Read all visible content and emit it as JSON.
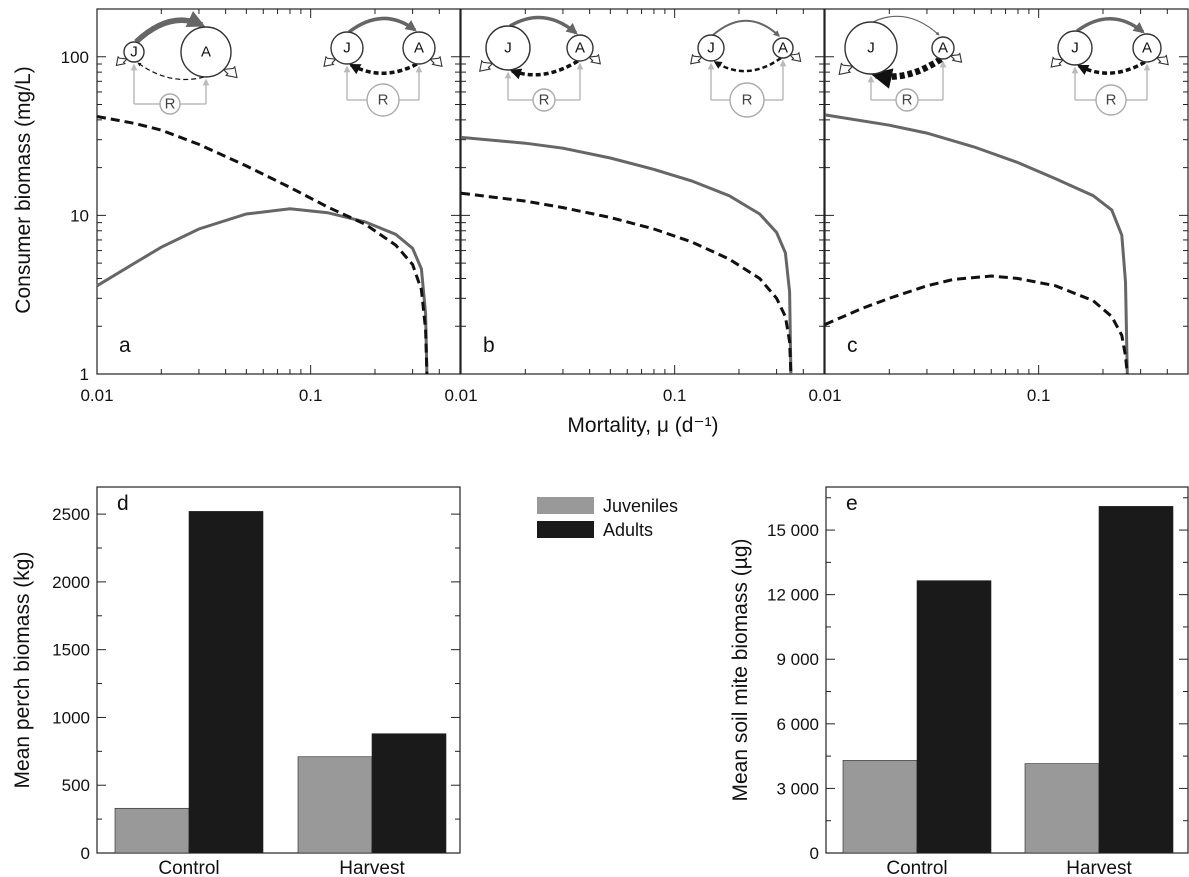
{
  "chart_data": [
    {
      "panel": "a",
      "type": "line",
      "xscale": "log",
      "yscale": "log",
      "xlim": [
        0.01,
        0.5
      ],
      "ylim": [
        1,
        200
      ],
      "xticks": [
        "0.01",
        "0.1"
      ],
      "yticks": [
        "1",
        "10",
        "100"
      ],
      "series": [
        {
          "style": "solid",
          "color": "#666666",
          "x": [
            0.01,
            0.015,
            0.02,
            0.03,
            0.05,
            0.08,
            0.12,
            0.18,
            0.25,
            0.3,
            0.33,
            0.345,
            0.35
          ],
          "y": [
            3.6,
            5.0,
            6.3,
            8.2,
            10.2,
            11.0,
            10.4,
            9.1,
            7.6,
            6.2,
            4.6,
            2.4,
            1.0
          ]
        },
        {
          "style": "dashed",
          "color": "#111111",
          "x": [
            0.01,
            0.015,
            0.02,
            0.03,
            0.05,
            0.08,
            0.12,
            0.18,
            0.25,
            0.3,
            0.33,
            0.345,
            0.35
          ],
          "y": [
            42,
            38,
            34.5,
            28,
            20.5,
            15,
            11.3,
            8.8,
            6.5,
            4.9,
            3.4,
            1.9,
            1.0
          ]
        }
      ]
    },
    {
      "panel": "b",
      "type": "line",
      "xscale": "log",
      "yscale": "log",
      "xlim": [
        0.01,
        0.5
      ],
      "ylim": [
        1,
        200
      ],
      "xticks": [
        "0.01",
        "0.1"
      ],
      "yticks": [],
      "series": [
        {
          "style": "solid",
          "color": "#666666",
          "x": [
            0.01,
            0.02,
            0.03,
            0.05,
            0.08,
            0.12,
            0.18,
            0.25,
            0.3,
            0.33,
            0.345,
            0.35
          ],
          "y": [
            31,
            28.5,
            26.5,
            23,
            19.5,
            16.5,
            13.3,
            10.2,
            7.8,
            5.8,
            3.3,
            1.0
          ]
        },
        {
          "style": "dashed",
          "color": "#111111",
          "x": [
            0.01,
            0.02,
            0.03,
            0.05,
            0.08,
            0.12,
            0.18,
            0.25,
            0.3,
            0.33,
            0.345,
            0.35
          ],
          "y": [
            13.8,
            12.3,
            11.2,
            9.7,
            8.2,
            6.8,
            5.3,
            4.0,
            3.0,
            2.3,
            1.6,
            1.0
          ]
        }
      ]
    },
    {
      "panel": "c",
      "type": "line",
      "xscale": "log",
      "yscale": "log",
      "xlim": [
        0.01,
        0.5
      ],
      "ylim": [
        1,
        200
      ],
      "xticks": [
        "0.01",
        "0.1"
      ],
      "yticks": [],
      "series": [
        {
          "style": "solid",
          "color": "#666666",
          "x": [
            0.01,
            0.02,
            0.03,
            0.05,
            0.08,
            0.12,
            0.18,
            0.22,
            0.245,
            0.255,
            0.26
          ],
          "y": [
            43,
            37,
            33,
            27,
            21.5,
            17,
            13.3,
            10.8,
            7.5,
            3.8,
            1.0
          ]
        },
        {
          "style": "dashed",
          "color": "#111111",
          "x": [
            0.01,
            0.015,
            0.02,
            0.03,
            0.04,
            0.06,
            0.08,
            0.12,
            0.18,
            0.22,
            0.245,
            0.255,
            0.26
          ],
          "y": [
            2.05,
            2.6,
            3.0,
            3.6,
            3.95,
            4.15,
            4.0,
            3.6,
            2.9,
            2.3,
            1.75,
            1.3,
            1.0
          ]
        }
      ]
    },
    {
      "panel": "d",
      "type": "bar",
      "categories": [
        "Control",
        "Harvest"
      ],
      "series": [
        {
          "name": "Juveniles",
          "color": "#999999",
          "values": [
            330,
            710
          ]
        },
        {
          "name": "Adults",
          "color": "#1a1a1a",
          "values": [
            2520,
            880
          ]
        }
      ],
      "ylabel": "Mean perch biomass (kg)",
      "ylim": [
        0,
        2700
      ],
      "yticks": [
        "0",
        "500",
        "1000",
        "1500",
        "2000",
        "2500"
      ]
    },
    {
      "panel": "e",
      "type": "bar",
      "categories": [
        "Control",
        "Harvest"
      ],
      "series": [
        {
          "name": "Juveniles",
          "color": "#999999",
          "values": [
            4300,
            4150
          ]
        },
        {
          "name": "Adults",
          "color": "#1a1a1a",
          "values": [
            12650,
            16100
          ]
        }
      ],
      "ylabel": "Mean soil mite biomass (µg)",
      "ylim": [
        0,
        17000
      ],
      "yticks": [
        "0",
        "3 000",
        "6 000",
        "9 000",
        "12 000",
        "15 000"
      ]
    }
  ],
  "top_axes": {
    "ylabel": "Consumer biomass (mg/L)",
    "xlabel": "Mortality, μ (d⁻¹)"
  },
  "panel_letters": [
    "a",
    "b",
    "c",
    "d",
    "e"
  ],
  "legend": {
    "items": [
      {
        "label": "Juveniles",
        "color": "#999999"
      },
      {
        "label": "Adults",
        "color": "#1a1a1a"
      }
    ]
  },
  "diagram_labels": {
    "juvenile": "J",
    "adult": "A",
    "resource": "R"
  }
}
